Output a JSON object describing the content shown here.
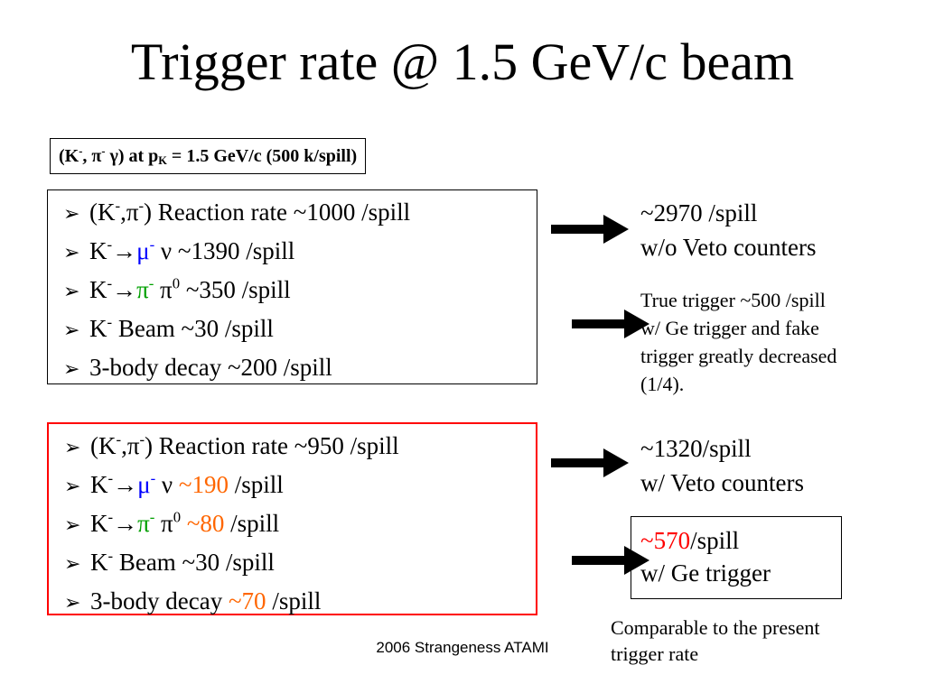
{
  "title": "Trigger rate @ 1.5 GeV/c beam",
  "condition": {
    "label": "(K",
    "sup_minus": "-",
    "comma": ", ",
    "pi": "π",
    "gamma": " γ) at  p",
    "sub_k": "K",
    "rest": " = 1.5 GeV/c (500 k/spill)"
  },
  "bullet_symbol": "➢",
  "box1": {
    "items": [
      {
        "pre": "(K",
        "sup1": "-",
        "mid": ",π",
        "sup2": "-",
        "post": ") Reaction rate ~1000 /spill"
      },
      {
        "pre": "K",
        "sup1": "-",
        "arrow": "→",
        "particle": "μ",
        "sup2": "-",
        "post": " ν  ~1390 /spill"
      },
      {
        "pre": "K",
        "sup1": "-",
        "arrow": "→",
        "particle": "π",
        "sup2": "-",
        "pi0": " π",
        "sup3": "0",
        "post": " ~350 /spill"
      },
      {
        "pre": "K",
        "sup1": "-",
        "post": " Beam ~30 /spill"
      },
      {
        "text": "3-body decay ~200 /spill"
      }
    ]
  },
  "box2": {
    "items": [
      {
        "pre": "(K",
        "sup1": "-",
        "mid": ",π",
        "sup2": "-",
        "post": ") Reaction rate ~950 /spill"
      },
      {
        "pre": "K",
        "sup1": "-",
        "arrow": "→",
        "particle": "μ",
        "sup2": "-",
        "mid2": " ν  ",
        "value": "~190",
        "post": " /spill"
      },
      {
        "pre": "K",
        "sup1": "-",
        "arrow": "→",
        "particle": "π",
        "sup2": "-",
        "pi0": " π",
        "sup3": "0",
        "mid2": " ",
        "value": "~80",
        "post": " /spill"
      },
      {
        "pre": "K",
        "sup1": "-",
        "post": " Beam ~30 /spill"
      },
      {
        "pre": "3-body decay ",
        "value": "~70",
        "post": " /spill"
      }
    ]
  },
  "results": {
    "r1_line1": "~2970 /spill",
    "r1_line2": "w/o Veto counters",
    "r2_line1": "True trigger ~500 /spill",
    "r2_line2": "w/ Ge trigger and fake",
    "r2_line3": "trigger greatly decreased",
    "r2_line4": "(1/4).",
    "r3_line1": "~1320/spill",
    "r3_line2": "w/ Veto counters",
    "r4_value": "~570",
    "r4_unit": "/spill",
    "r4_line2": "w/ Ge trigger"
  },
  "note": {
    "line1": "Comparable to the present",
    "line2": "trigger rate"
  },
  "footer": "2006 Strangeness ATAMI",
  "colors": {
    "mu": "#0000ff",
    "pi": "#00a000",
    "highlight": "#ff6600",
    "final": "#ff0000",
    "box2_border": "#ff0000"
  }
}
